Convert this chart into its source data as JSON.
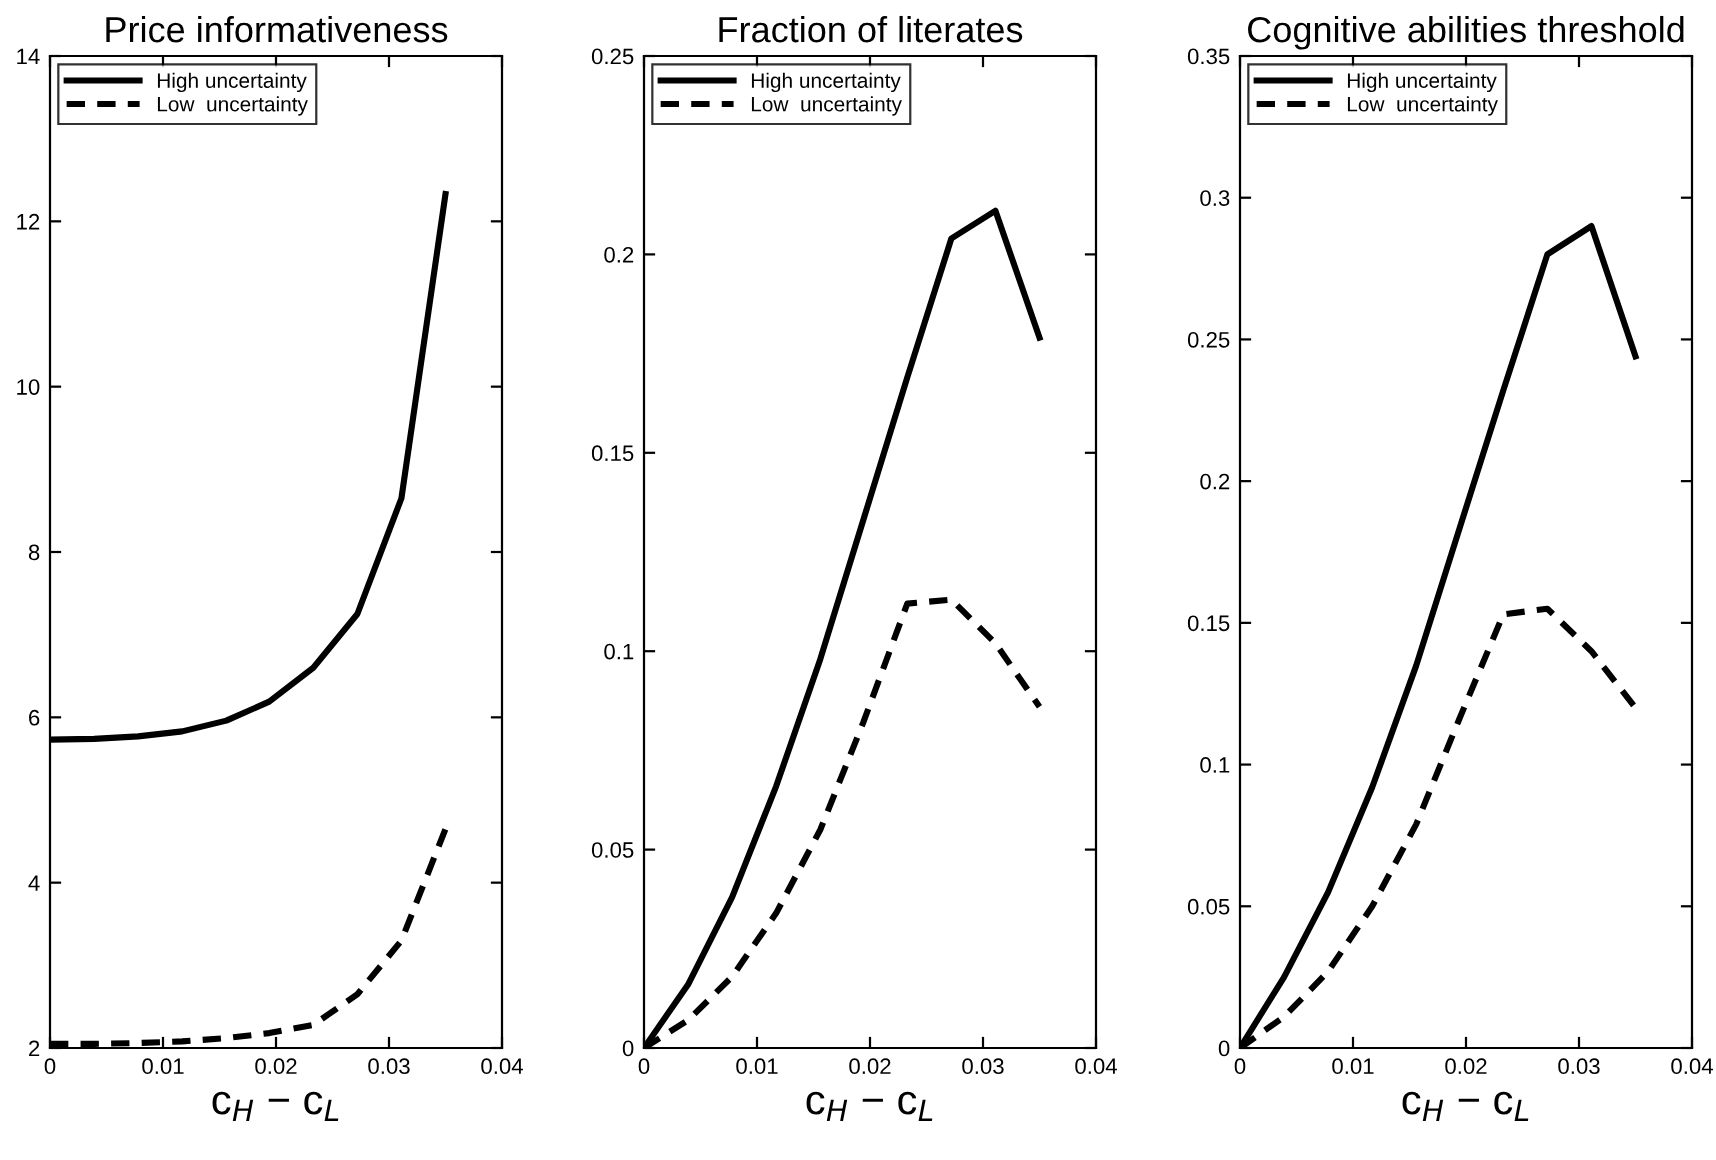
{
  "chart_data": [
    {
      "type": "line",
      "title": "Price informativeness",
      "xlabel": "c$_{H}$ − c$_{L}$",
      "x": [
        0,
        0.0039,
        0.0078,
        0.0117,
        0.0156,
        0.0194,
        0.0233,
        0.0272,
        0.0311,
        0.035
      ],
      "xlim": [
        0,
        0.04
      ],
      "xticks": [
        0,
        0.01,
        0.02,
        0.03,
        0.04
      ],
      "ylim": [
        2,
        14
      ],
      "yticks": [
        2,
        4,
        6,
        8,
        10,
        12,
        14
      ],
      "legend": "top left",
      "series": [
        {
          "name": "High uncertainty",
          "color": "#000000",
          "line_style": "solid",
          "values": [
            5.73,
            5.74,
            5.77,
            5.83,
            5.96,
            6.19,
            6.6,
            7.25,
            8.65,
            12.33
          ]
        },
        {
          "name": "Low  uncertainty",
          "color": "#000000",
          "line_style": "dashed",
          "values": [
            2.05,
            2.05,
            2.06,
            2.08,
            2.12,
            2.18,
            2.28,
            2.65,
            3.3,
            4.65
          ]
        }
      ]
    },
    {
      "type": "line",
      "title": "Fraction of literates",
      "xlabel": "c$_{H}$ − c$_{L}$",
      "x": [
        0,
        0.0039,
        0.0078,
        0.0117,
        0.0156,
        0.0194,
        0.0233,
        0.0272,
        0.0311,
        0.035
      ],
      "xlim": [
        0,
        0.04
      ],
      "xticks": [
        0,
        0.01,
        0.02,
        0.03,
        0.04
      ],
      "ylim": [
        0,
        0.25
      ],
      "yticks": [
        0,
        0.05,
        0.1,
        0.15,
        0.2,
        0.25
      ],
      "legend": "top left",
      "series": [
        {
          "name": "High uncertainty",
          "color": "#000000",
          "line_style": "solid",
          "values": [
            0,
            0.016,
            0.038,
            0.066,
            0.098,
            0.133,
            0.169,
            0.204,
            0.211,
            0.179
          ]
        },
        {
          "name": "Low  uncertainty",
          "color": "#000000",
          "line_style": "dashed",
          "values": [
            0,
            0.007,
            0.018,
            0.034,
            0.055,
            0.082,
            0.112,
            0.113,
            0.102,
            0.086
          ]
        }
      ]
    },
    {
      "type": "line",
      "title": "Cognitive abilities threshold",
      "xlabel": "c$_{H}$ − c$_{L}$",
      "x": [
        0,
        0.0039,
        0.0078,
        0.0117,
        0.0156,
        0.0194,
        0.0233,
        0.0272,
        0.0311,
        0.035
      ],
      "xlim": [
        0,
        0.04
      ],
      "xticks": [
        0,
        0.01,
        0.02,
        0.03,
        0.04
      ],
      "ylim": [
        0,
        0.35
      ],
      "yticks": [
        0,
        0.05,
        0.1,
        0.15,
        0.2,
        0.25,
        0.3,
        0.35
      ],
      "legend": "top left",
      "series": [
        {
          "name": "High uncertainty",
          "color": "#000000",
          "line_style": "solid",
          "values": [
            0,
            0.025,
            0.055,
            0.092,
            0.135,
            0.183,
            0.232,
            0.28,
            0.29,
            0.244
          ]
        },
        {
          "name": "Low  uncertainty",
          "color": "#000000",
          "line_style": "dashed",
          "values": [
            0,
            0.011,
            0.027,
            0.05,
            0.079,
            0.116,
            0.153,
            0.155,
            0.14,
            0.12
          ]
        }
      ]
    }
  ]
}
